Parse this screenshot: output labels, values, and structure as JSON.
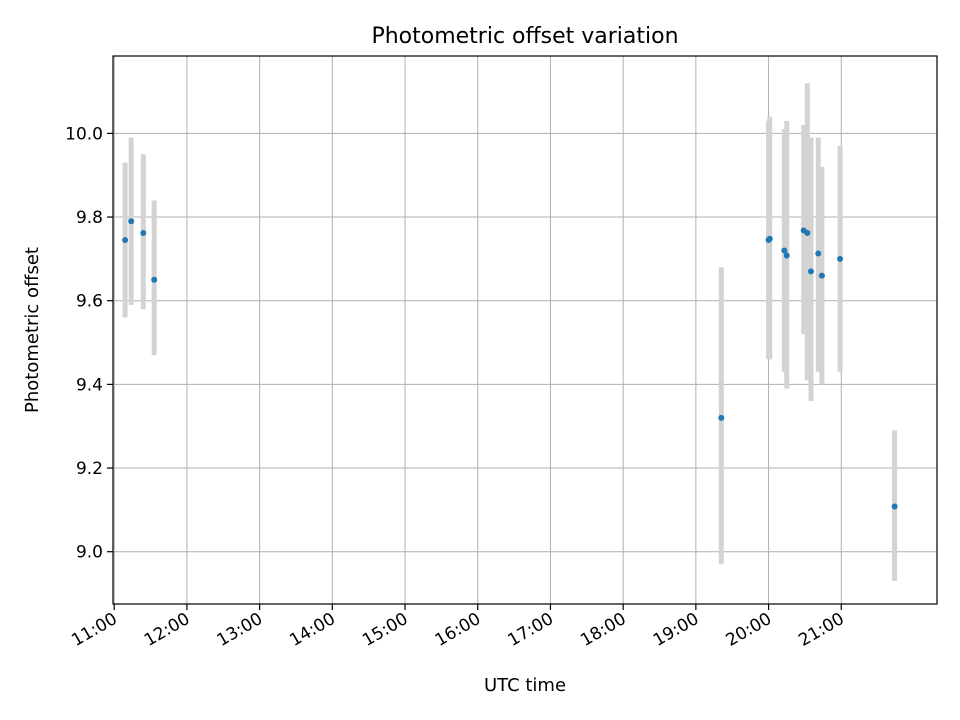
{
  "chart_data": {
    "type": "scatter",
    "title": "Photometric offset variation",
    "xlabel": "UTC time",
    "ylabel": "Photometric offset",
    "x_ticks": [
      "11:00",
      "12:00",
      "13:00",
      "14:00",
      "15:00",
      "16:00",
      "17:00",
      "18:00",
      "19:00",
      "20:00",
      "21:00"
    ],
    "y_ticks": [
      "9.0",
      "9.2",
      "9.4",
      "9.6",
      "9.8",
      "10.0"
    ],
    "xlim": [
      "10:59",
      "22:19"
    ],
    "ylim": [
      8.875,
      10.185
    ],
    "grid": true,
    "colors": {
      "point": "#1f77b4",
      "errorbar": "#d3d3d3",
      "grid": "#b0b0b0"
    },
    "points": [
      {
        "time": "11:09",
        "y": 9.745,
        "err_low": 9.56,
        "err_high": 9.93
      },
      {
        "time": "11:14",
        "y": 9.79,
        "err_low": 9.59,
        "err_high": 9.99
      },
      {
        "time": "11:24",
        "y": 9.762,
        "err_low": 9.58,
        "err_high": 9.95
      },
      {
        "time": "11:33",
        "y": 9.65,
        "err_low": 9.47,
        "err_high": 9.84
      },
      {
        "time": "19:21",
        "y": 9.32,
        "err_low": 8.97,
        "err_high": 9.68
      },
      {
        "time": "20:00",
        "y": 9.745,
        "err_low": 9.46,
        "err_high": 10.03
      },
      {
        "time": "20:01",
        "y": 9.748,
        "err_low": 9.46,
        "err_high": 10.04
      },
      {
        "time": "20:13",
        "y": 9.72,
        "err_low": 9.43,
        "err_high": 10.01
      },
      {
        "time": "20:15",
        "y": 9.708,
        "err_low": 9.39,
        "err_high": 10.03
      },
      {
        "time": "20:29",
        "y": 9.768,
        "err_low": 9.52,
        "err_high": 10.02
      },
      {
        "time": "20:32",
        "y": 9.762,
        "err_low": 9.41,
        "err_high": 10.12
      },
      {
        "time": "20:35",
        "y": 9.67,
        "err_low": 9.36,
        "err_high": 9.99
      },
      {
        "time": "20:41",
        "y": 9.713,
        "err_low": 9.43,
        "err_high": 9.99
      },
      {
        "time": "20:44",
        "y": 9.66,
        "err_low": 9.4,
        "err_high": 9.92
      },
      {
        "time": "20:59",
        "y": 9.7,
        "err_low": 9.43,
        "err_high": 9.97
      },
      {
        "time": "21:44",
        "y": 9.108,
        "err_low": 8.93,
        "err_high": 9.29
      }
    ]
  }
}
